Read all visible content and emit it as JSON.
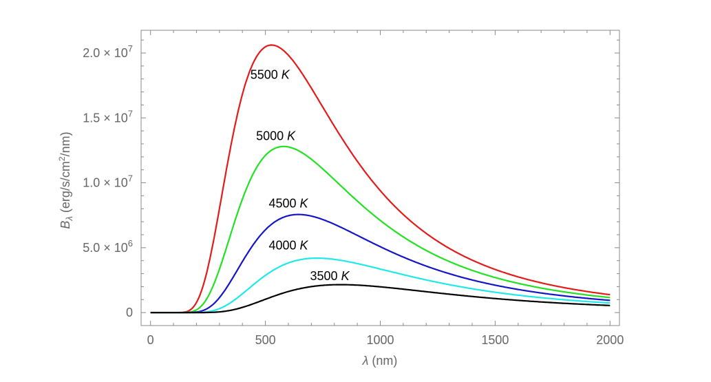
{
  "chart_data": {
    "type": "line",
    "title": "",
    "xlabel": "λ (nm)",
    "ylabel": "Bλ (erg/s/cm²/nm)",
    "ylabel_parts": {
      "symbol": "B",
      "subscript": "λ",
      "units_before_sup": " (erg/s/cm",
      "sup": "2",
      "units_after_sup": "/nm)"
    },
    "xlabel_parts": {
      "symbol": "λ",
      "units": " (nm)"
    },
    "xlim": [
      -41,
      2041
    ],
    "ylim": [
      -1000000,
      21750000
    ],
    "grid": false,
    "legend": "none (curves labelled directly)",
    "x_ticks": [
      {
        "value": 0,
        "label": "0"
      },
      {
        "value": 500,
        "label": "500"
      },
      {
        "value": 1000,
        "label": "1000"
      },
      {
        "value": 1500,
        "label": "1500"
      },
      {
        "value": 2000,
        "label": "2000"
      }
    ],
    "y_ticks": [
      {
        "value": 0,
        "mantissa": "0",
        "exp": ""
      },
      {
        "value": 5000000,
        "mantissa": "5.0 × 10",
        "exp": "6"
      },
      {
        "value": 10000000,
        "mantissa": "1.0 × 10",
        "exp": "7"
      },
      {
        "value": 15000000,
        "mantissa": "1.5 × 10",
        "exp": "7"
      },
      {
        "value": 20000000,
        "mantissa": "2.0 × 10",
        "exp": "7"
      }
    ],
    "x_range_plotted": [
      0,
      2000
    ],
    "series": [
      {
        "name": "5500 K",
        "temperature_K": 5500,
        "color": "#e41a1a",
        "peak_nm": 527,
        "peak_value": 20560000,
        "label_num": "5500",
        "label_unit": "K",
        "label_at": [
          520,
          18000000
        ]
      },
      {
        "name": "5000 K",
        "temperature_K": 5000,
        "color": "#22e022",
        "peak_nm": 580,
        "peak_value": 12750000,
        "label_num": "5000",
        "label_unit": "K",
        "label_at": [
          545,
          13300000
        ]
      },
      {
        "name": "4500 K",
        "temperature_K": 4500,
        "color": "#1414c8",
        "peak_nm": 644,
        "peak_value": 7530000,
        "label_num": "4500",
        "label_unit": "K",
        "label_at": [
          600,
          8100000
        ]
      },
      {
        "name": "4000 K",
        "temperature_K": 4000,
        "color": "#1ee8e8",
        "peak_nm": 725,
        "peak_value": 4180000,
        "label_num": "4000",
        "label_unit": "K",
        "label_at": [
          600,
          4850000
        ]
      },
      {
        "name": "3500 K",
        "temperature_K": 3500,
        "color": "#000000",
        "peak_nm": 828,
        "peak_value": 2120000,
        "label_num": "3500",
        "label_unit": "K",
        "label_at": [
          780,
          2500000
        ]
      }
    ]
  }
}
